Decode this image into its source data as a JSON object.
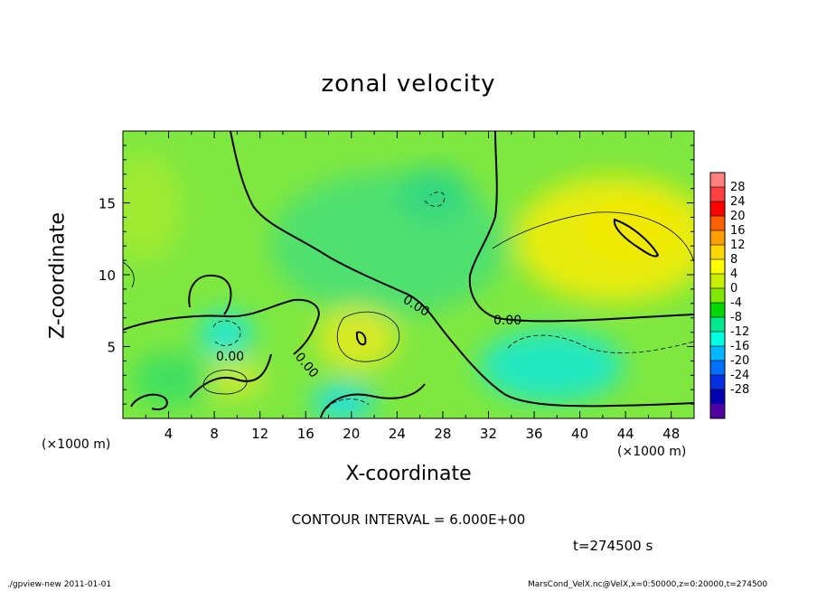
{
  "chart_data": {
    "type": "heatmap",
    "title": "zonal velocity",
    "xlabel": "X-coordinate",
    "ylabel": "Z-coordinate",
    "x_unit_label": "(×1000 m)",
    "xlim": [
      0,
      50
    ],
    "ylim": [
      0,
      20
    ],
    "x_ticks": [
      4,
      8,
      12,
      16,
      20,
      24,
      28,
      32,
      36,
      40,
      44,
      48
    ],
    "y_ticks": [
      5,
      10,
      15
    ],
    "colorbar": {
      "ticks": [
        28,
        24,
        20,
        16,
        12,
        8,
        4,
        0,
        -4,
        -8,
        -12,
        -16,
        -20,
        -24,
        -28
      ],
      "colors": [
        "#ff8080",
        "#ff4040",
        "#ff0000",
        "#ff6000",
        "#ffa000",
        "#ffd800",
        "#ffff00",
        "#c8f000",
        "#80e800",
        "#00d800",
        "#00e890",
        "#00ffe0",
        "#00b8ff",
        "#0070ff",
        "#0030e0",
        "#0000b0",
        "#5000a0"
      ]
    },
    "contour_labels": [
      "0.00",
      "0.00",
      "0.00",
      "0.00"
    ],
    "contour_interval": "CONTOUR INTERVAL = 6.000E+00",
    "time_label": "t=274500 s",
    "footer_left": "./gpview-new   2011-01-01",
    "footer_right": "MarsCond_VelX.nc@VelX,x=0:50000,z=0:20000,t=274500"
  }
}
